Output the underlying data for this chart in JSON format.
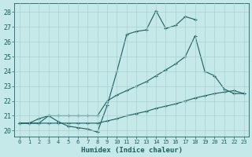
{
  "xlabel": "Humidex (Indice chaleur)",
  "bg_color": "#c5e8e8",
  "grid_color": "#aad0d0",
  "line_color": "#1a6060",
  "xlim": [
    -0.5,
    23.5
  ],
  "ylim": [
    19.6,
    28.6
  ],
  "xticks": [
    0,
    1,
    2,
    3,
    4,
    5,
    6,
    7,
    8,
    9,
    10,
    11,
    12,
    13,
    14,
    15,
    16,
    17,
    18,
    19,
    20,
    21,
    22,
    23
  ],
  "yticks": [
    20,
    21,
    22,
    23,
    24,
    25,
    26,
    27,
    28
  ],
  "series1_x": [
    0,
    1,
    2,
    3,
    4,
    5,
    6,
    7,
    8,
    9,
    10,
    11,
    12,
    13,
    14,
    15,
    16,
    17,
    18
  ],
  "series1_y": [
    20.5,
    20.5,
    20.8,
    21.0,
    20.6,
    20.3,
    20.2,
    20.1,
    19.9,
    21.7,
    24.0,
    26.5,
    26.7,
    26.8,
    28.1,
    26.9,
    27.1,
    27.7,
    27.5
  ],
  "series2_x": [
    0,
    1,
    2,
    3,
    4,
    5,
    6,
    7,
    8,
    9,
    10,
    11,
    12,
    13,
    14,
    15,
    16,
    17,
    18,
    19,
    20,
    21,
    22,
    23
  ],
  "series2_y": [
    20.5,
    20.5,
    20.5,
    21.0,
    21.0,
    21.0,
    21.0,
    21.0,
    21.0,
    22.0,
    22.4,
    22.7,
    23.0,
    23.3,
    23.7,
    24.1,
    24.5,
    25.0,
    26.4,
    24.0,
    23.7,
    22.8,
    22.5,
    22.5
  ],
  "series3_x": [
    0,
    1,
    2,
    3,
    4,
    5,
    6,
    7,
    8,
    9,
    10,
    11,
    12,
    13,
    14,
    15,
    16,
    17,
    18,
    19,
    20,
    21,
    22,
    23
  ],
  "series3_y": [
    20.5,
    20.5,
    20.5,
    20.5,
    20.5,
    20.5,
    20.5,
    20.5,
    20.5,
    20.65,
    20.8,
    21.0,
    21.15,
    21.3,
    21.5,
    21.65,
    21.8,
    22.0,
    22.2,
    22.35,
    22.5,
    22.6,
    22.7,
    22.5
  ]
}
